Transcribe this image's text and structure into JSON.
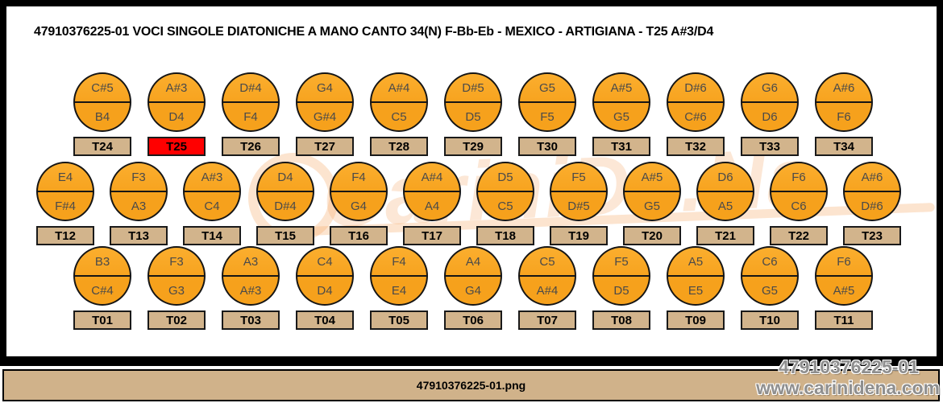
{
  "title": "47910376225-01 VOCI SINGOLE DIATONICHE A MANO CANTO 34(N) F-Bb-Eb - MEXICO - ARTIGIANA - T25 A#3/D4",
  "filename_bar": {
    "label": "47910376225-01.png"
  },
  "watermark": {
    "center_text": "CariniDe.Na",
    "line1": "47910376225-01",
    "line2": "www.carinidena.com"
  },
  "colors": {
    "button_fill": "#F6A11C",
    "button_fill_light": "#FBAE2E",
    "label_fill": "#D2B48C",
    "highlight_fill": "#FF0000",
    "bar_fill": "#D0B28A",
    "outline": "#151515"
  },
  "rows": [
    {
      "position": "top",
      "buttons": [
        {
          "id": "T24",
          "top": "C#5",
          "bottom": "B4",
          "highlight": false
        },
        {
          "id": "T25",
          "top": "A#3",
          "bottom": "D4",
          "highlight": true
        },
        {
          "id": "T26",
          "top": "D#4",
          "bottom": "F4",
          "highlight": false
        },
        {
          "id": "T27",
          "top": "G4",
          "bottom": "G#4",
          "highlight": false
        },
        {
          "id": "T28",
          "top": "A#4",
          "bottom": "C5",
          "highlight": false
        },
        {
          "id": "T29",
          "top": "D#5",
          "bottom": "D5",
          "highlight": false
        },
        {
          "id": "T30",
          "top": "G5",
          "bottom": "F5",
          "highlight": false
        },
        {
          "id": "T31",
          "top": "A#5",
          "bottom": "G5",
          "highlight": false
        },
        {
          "id": "T32",
          "top": "D#6",
          "bottom": "C#6",
          "highlight": false
        },
        {
          "id": "T33",
          "top": "G6",
          "bottom": "D6",
          "highlight": false
        },
        {
          "id": "T34",
          "top": "A#6",
          "bottom": "F6",
          "highlight": false
        }
      ]
    },
    {
      "position": "middle",
      "buttons": [
        {
          "id": "T12",
          "top": "E4",
          "bottom": "F#4",
          "highlight": false
        },
        {
          "id": "T13",
          "top": "F3",
          "bottom": "A3",
          "highlight": false
        },
        {
          "id": "T14",
          "top": "A#3",
          "bottom": "C4",
          "highlight": false
        },
        {
          "id": "T15",
          "top": "D4",
          "bottom": "D#4",
          "highlight": false
        },
        {
          "id": "T16",
          "top": "F4",
          "bottom": "G4",
          "highlight": false
        },
        {
          "id": "T17",
          "top": "A#4",
          "bottom": "A4",
          "highlight": false
        },
        {
          "id": "T18",
          "top": "D5",
          "bottom": "C5",
          "highlight": false
        },
        {
          "id": "T19",
          "top": "F5",
          "bottom": "D#5",
          "highlight": false
        },
        {
          "id": "T20",
          "top": "A#5",
          "bottom": "G5",
          "highlight": false
        },
        {
          "id": "T21",
          "top": "D6",
          "bottom": "A5",
          "highlight": false
        },
        {
          "id": "T22",
          "top": "F6",
          "bottom": "C6",
          "highlight": false
        },
        {
          "id": "T23",
          "top": "A#6",
          "bottom": "D#6",
          "highlight": false
        }
      ]
    },
    {
      "position": "bottom",
      "buttons": [
        {
          "id": "T01",
          "top": "B3",
          "bottom": "C#4",
          "highlight": false
        },
        {
          "id": "T02",
          "top": "F3",
          "bottom": "G3",
          "highlight": false
        },
        {
          "id": "T03",
          "top": "A3",
          "bottom": "A#3",
          "highlight": false
        },
        {
          "id": "T04",
          "top": "C4",
          "bottom": "D4",
          "highlight": false
        },
        {
          "id": "T05",
          "top": "F4",
          "bottom": "E4",
          "highlight": false
        },
        {
          "id": "T06",
          "top": "A4",
          "bottom": "G4",
          "highlight": false
        },
        {
          "id": "T07",
          "top": "C5",
          "bottom": "A#4",
          "highlight": false
        },
        {
          "id": "T08",
          "top": "F5",
          "bottom": "D5",
          "highlight": false
        },
        {
          "id": "T09",
          "top": "A5",
          "bottom": "E5",
          "highlight": false
        },
        {
          "id": "T10",
          "top": "C6",
          "bottom": "G5",
          "highlight": false
        },
        {
          "id": "T11",
          "top": "F6",
          "bottom": "A#5",
          "highlight": false
        }
      ]
    }
  ]
}
